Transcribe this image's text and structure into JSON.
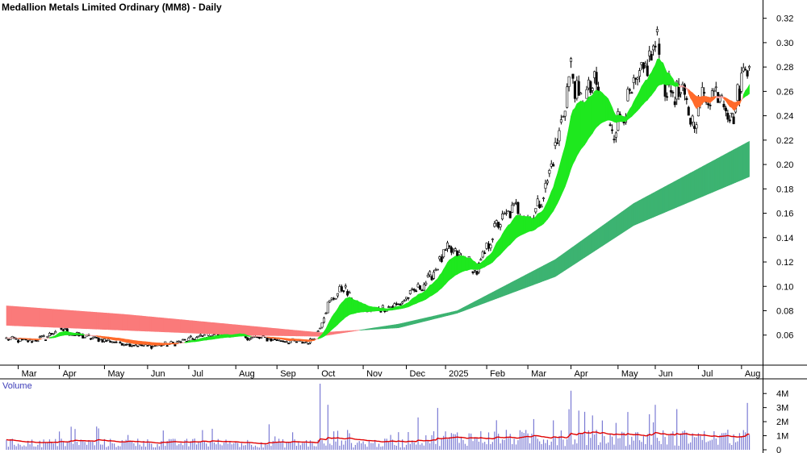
{
  "chart_data": {
    "type": "candlestick",
    "title": "Medallion Metals Limited Ordinary (MM8) - Daily",
    "price_axis": {
      "ticks": [
        0.06,
        0.08,
        0.1,
        0.12,
        0.14,
        0.16,
        0.18,
        0.2,
        0.22,
        0.24,
        0.26,
        0.28,
        0.3,
        0.32
      ],
      "tick_labels": [
        "0.06",
        "0.08",
        "0.10",
        "0.12",
        "0.14",
        "0.16",
        "0.18",
        "0.20",
        "0.22",
        "0.24",
        "0.26",
        "0.28",
        "0.30",
        "0.32"
      ],
      "ylim": [
        0.036,
        0.335
      ]
    },
    "time_axis": {
      "labels": [
        "Mar",
        "Apr",
        "May",
        "Jun",
        "Jul",
        "Aug",
        "Sep",
        "Oct",
        "Nov",
        "Dec",
        "2025",
        "Feb",
        "Mar",
        "Apr",
        "May",
        "Jun",
        "Jul",
        "Aug"
      ],
      "label_index": [
        6,
        27,
        50,
        72,
        93,
        117,
        138,
        159,
        182,
        204,
        224,
        245,
        266,
        288,
        312,
        331,
        353,
        375
      ],
      "bar_count": 380
    },
    "price_anchors": [
      [
        0,
        0.057
      ],
      [
        10,
        0.055
      ],
      [
        20,
        0.058
      ],
      [
        27,
        0.066
      ],
      [
        35,
        0.06
      ],
      [
        50,
        0.056
      ],
      [
        72,
        0.051
      ],
      [
        85,
        0.053
      ],
      [
        95,
        0.057
      ],
      [
        105,
        0.061
      ],
      [
        115,
        0.061
      ],
      [
        125,
        0.058
      ],
      [
        140,
        0.056
      ],
      [
        150,
        0.054
      ],
      [
        155,
        0.055
      ],
      [
        159,
        0.064
      ],
      [
        164,
        0.085
      ],
      [
        172,
        0.1
      ],
      [
        177,
        0.085
      ],
      [
        185,
        0.08
      ],
      [
        200,
        0.085
      ],
      [
        215,
        0.105
      ],
      [
        225,
        0.13
      ],
      [
        236,
        0.12
      ],
      [
        240,
        0.112
      ],
      [
        250,
        0.15
      ],
      [
        260,
        0.165
      ],
      [
        268,
        0.155
      ],
      [
        275,
        0.18
      ],
      [
        282,
        0.225
      ],
      [
        288,
        0.28
      ],
      [
        292,
        0.25
      ],
      [
        300,
        0.265
      ],
      [
        310,
        0.23
      ],
      [
        325,
        0.275
      ],
      [
        332,
        0.3
      ],
      [
        336,
        0.265
      ],
      [
        345,
        0.255
      ],
      [
        350,
        0.235
      ],
      [
        355,
        0.255
      ],
      [
        365,
        0.262
      ],
      [
        370,
        0.235
      ],
      [
        375,
        0.27
      ],
      [
        379,
        0.29
      ]
    ],
    "short_mma_band": {
      "colors": {
        "rising": "#1ee81e",
        "falling": "#ff6a2a",
        "mixed": "#f5a0a0"
      }
    },
    "long_mma_band": {
      "anchors": [
        [
          0,
          0.084,
          0.068
        ],
        [
          60,
          0.077,
          0.064
        ],
        [
          120,
          0.068,
          0.06
        ],
        [
          160,
          0.062,
          0.059
        ],
        [
          200,
          0.066,
          0.069
        ],
        [
          230,
          0.078,
          0.08
        ],
        [
          280,
          0.108,
          0.122
        ],
        [
          320,
          0.15,
          0.168
        ],
        [
          379,
          0.19,
          0.219
        ]
      ],
      "colors": {
        "bearish": "#fa7a7a",
        "bullish": "#3cb371"
      }
    },
    "volume": {
      "title": "Volume",
      "ticks": [
        0,
        1000000,
        2000000,
        3000000,
        4000000
      ],
      "tick_labels": [
        "0",
        "1M",
        "2M",
        "3M",
        "4M"
      ],
      "ylim": [
        0,
        4700000
      ],
      "bar_color": "#7b7bd4",
      "avg_color": "#e00000",
      "spikes": [
        [
          27,
          1300000
        ],
        [
          100,
          1400000
        ],
        [
          160,
          4700000
        ],
        [
          164,
          3200000
        ],
        [
          210,
          2300000
        ],
        [
          250,
          2100000
        ],
        [
          288,
          4200000
        ],
        [
          295,
          2700000
        ]
      ]
    }
  }
}
